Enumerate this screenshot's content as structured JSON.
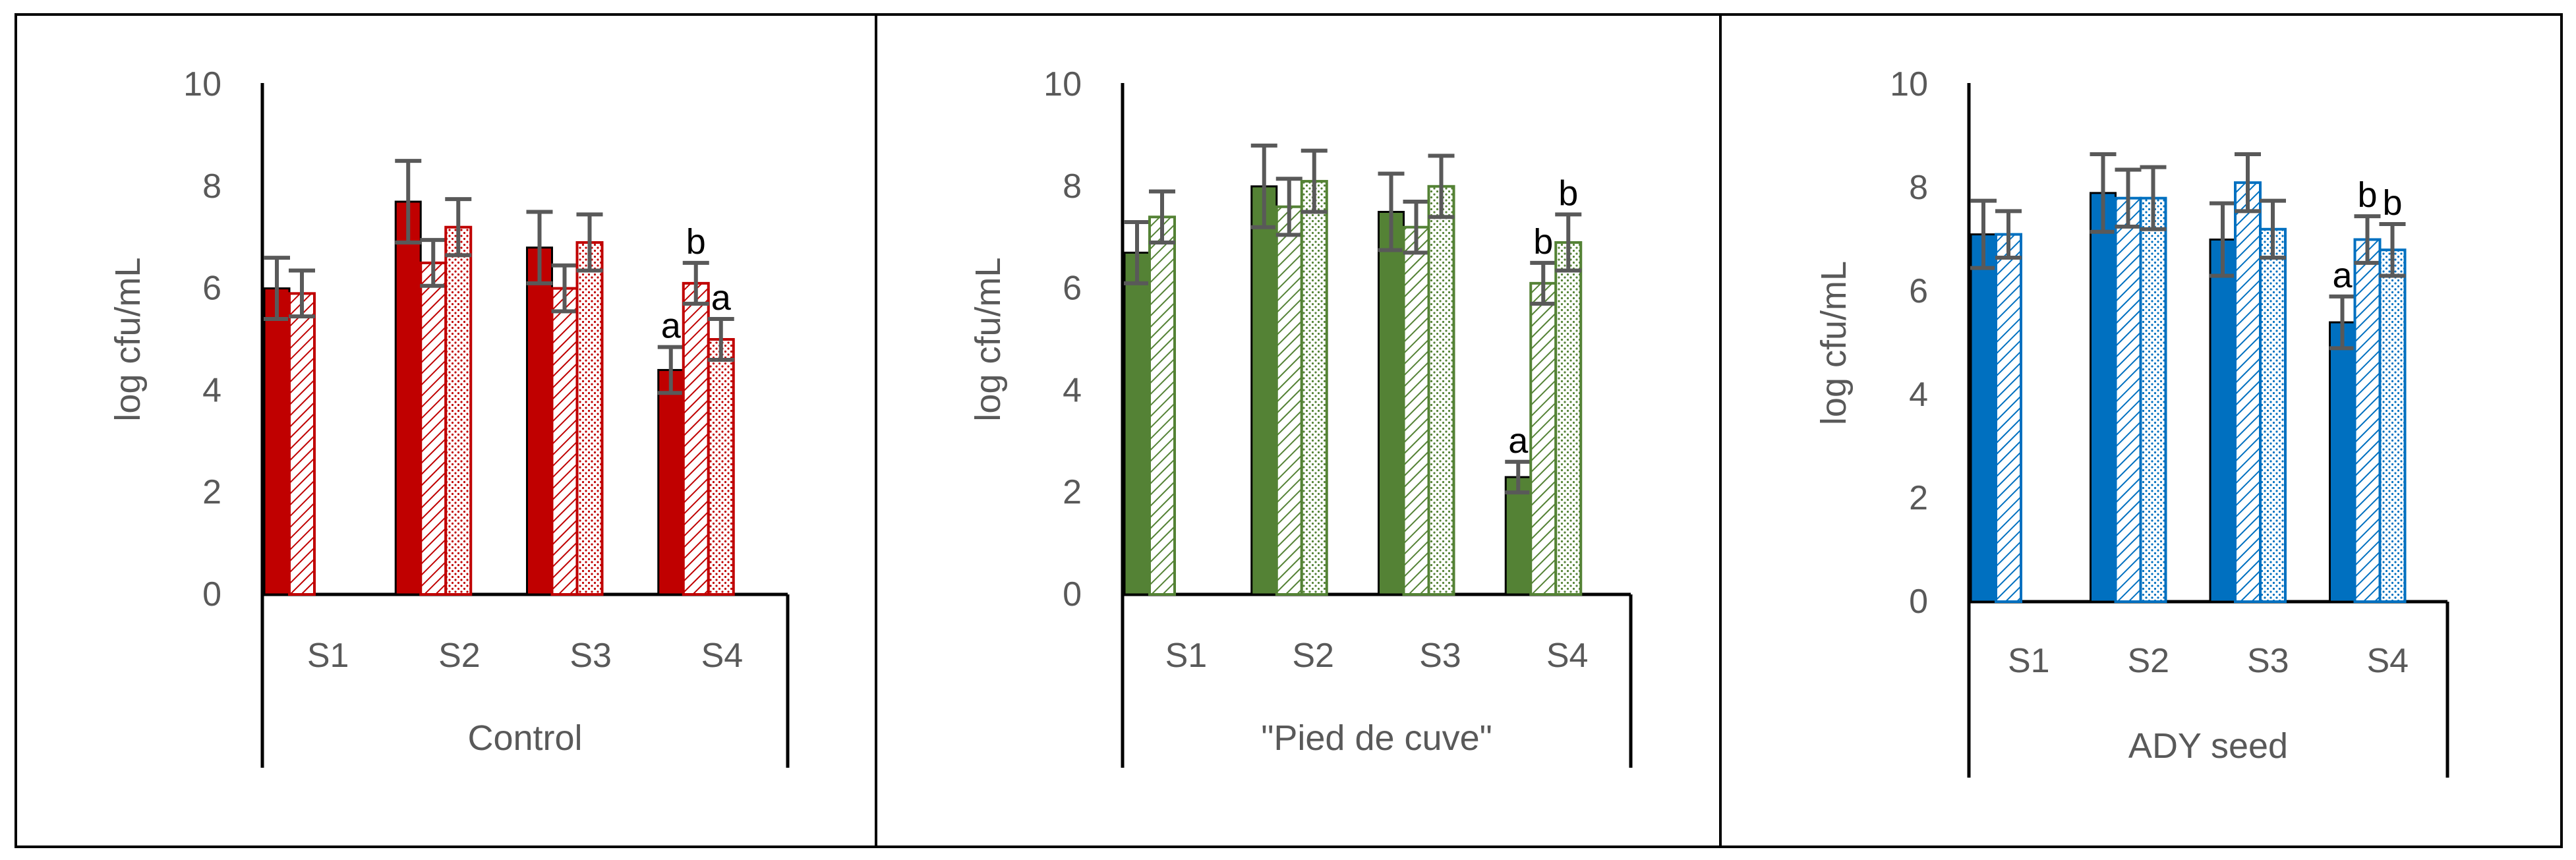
{
  "chart_data": [
    {
      "type": "bar",
      "group_label": "Control",
      "ylabel": "log cfu/mL",
      "ylim": [
        0,
        10
      ],
      "yticks": [
        "0",
        "2",
        "4",
        "6",
        "8",
        "10"
      ],
      "categories": [
        "S1",
        "S2",
        "S3",
        "S4"
      ],
      "colors": {
        "primary": "#c00000"
      },
      "series": [
        {
          "fill": "solid",
          "values": [
            6.0,
            7.7,
            6.8,
            4.4
          ],
          "errors": [
            0.6,
            0.8,
            0.7,
            0.45
          ]
        },
        {
          "fill": "hatched",
          "values": [
            5.9,
            6.5,
            6.0,
            6.1
          ],
          "errors": [
            0.45,
            0.45,
            0.45,
            0.4
          ]
        },
        {
          "fill": "dotted",
          "values": [
            null,
            7.2,
            6.9,
            5.0
          ],
          "errors": [
            null,
            0.55,
            0.55,
            0.4
          ]
        }
      ],
      "annotations": [
        {
          "category": "S4",
          "series": 0,
          "text": "a"
        },
        {
          "category": "S4",
          "series": 1,
          "text": "b"
        },
        {
          "category": "S4",
          "series": 2,
          "text": "a"
        }
      ]
    },
    {
      "type": "bar",
      "group_label": "\"Pied de cuve\"",
      "ylabel": "log cfu/mL",
      "ylim": [
        0,
        10
      ],
      "yticks": [
        "0",
        "2",
        "4",
        "6",
        "8",
        "10"
      ],
      "categories": [
        "S1",
        "S2",
        "S3",
        "S4"
      ],
      "colors": {
        "primary": "#548235"
      },
      "series": [
        {
          "fill": "solid",
          "values": [
            6.7,
            8.0,
            7.5,
            2.3
          ],
          "errors": [
            0.6,
            0.8,
            0.75,
            0.3
          ]
        },
        {
          "fill": "hatched",
          "values": [
            7.4,
            7.6,
            7.2,
            6.1
          ],
          "errors": [
            0.5,
            0.55,
            0.5,
            0.4
          ]
        },
        {
          "fill": "dotted",
          "values": [
            null,
            8.1,
            8.0,
            6.9
          ],
          "errors": [
            null,
            0.6,
            0.6,
            0.55
          ]
        }
      ],
      "annotations": [
        {
          "category": "S4",
          "series": 0,
          "text": "a"
        },
        {
          "category": "S4",
          "series": 1,
          "text": "b"
        },
        {
          "category": "S4",
          "series": 2,
          "text": "b"
        }
      ]
    },
    {
      "type": "bar",
      "group_label": "ADY seed",
      "ylabel": "log cfu/mL",
      "ylim": [
        0,
        10
      ],
      "yticks": [
        "0",
        "2",
        "4",
        "6",
        "8",
        "10"
      ],
      "categories": [
        "S1",
        "S2",
        "S3",
        "S4"
      ],
      "colors": {
        "primary": "#0070c0"
      },
      "series": [
        {
          "fill": "solid",
          "values": [
            7.1,
            7.9,
            7.0,
            5.4
          ],
          "errors": [
            0.65,
            0.75,
            0.7,
            0.5
          ]
        },
        {
          "fill": "hatched",
          "values": [
            7.1,
            7.8,
            8.1,
            7.0
          ],
          "errors": [
            0.45,
            0.55,
            0.55,
            0.45
          ]
        },
        {
          "fill": "dotted",
          "values": [
            null,
            7.8,
            7.2,
            6.8
          ],
          "errors": [
            null,
            0.6,
            0.55,
            0.5
          ]
        }
      ],
      "annotations": [
        {
          "category": "S4",
          "series": 0,
          "text": "a"
        },
        {
          "category": "S4",
          "series": 1,
          "text": "b"
        },
        {
          "category": "S4",
          "series": 2,
          "text": "b"
        }
      ]
    }
  ]
}
